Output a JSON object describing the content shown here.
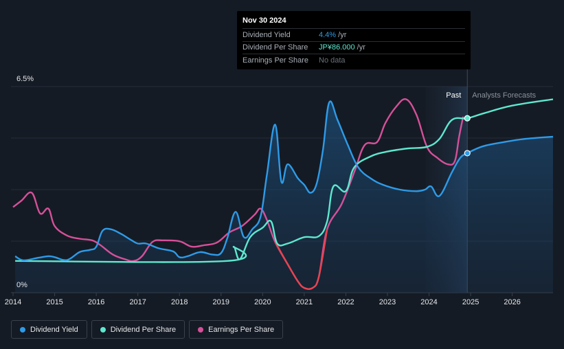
{
  "tooltip": {
    "date": "Nov 30 2024",
    "rows": [
      {
        "label": "Dividend Yield",
        "value": "4.4%",
        "suffix": " /yr"
      },
      {
        "label": "Dividend Per Share",
        "value": "JP¥86.000",
        "suffix": " /yr"
      },
      {
        "label": "Earnings Per Share",
        "value": "No data",
        "suffix": ""
      }
    ]
  },
  "legend": [
    {
      "label": "Dividend Yield",
      "color": "#2e9be8"
    },
    {
      "label": "Dividend Per Share",
      "color": "#5ee8cf"
    },
    {
      "label": "Earnings Per Share",
      "color": "#d6509a"
    }
  ],
  "chart_data": {
    "type": "line",
    "region_labels": {
      "past": "Past",
      "forecast": "Analysts Forecasts"
    },
    "y_ticks": [
      {
        "value": 6.5,
        "label": "6.5%"
      },
      {
        "value": 0,
        "label": "0%"
      }
    ],
    "x_ticks": [
      "2014",
      "2015",
      "2016",
      "2017",
      "2018",
      "2019",
      "2020",
      "2021",
      "2022",
      "2023",
      "2024",
      "2025",
      "2026"
    ],
    "xlim": [
      2013.95,
      2026.98
    ],
    "ylim": [
      0,
      6.5
    ],
    "forecast_start": 2024.92,
    "shade_start": 2023.92,
    "series": [
      {
        "name": "Dividend Yield",
        "unit": "%",
        "color": "#2e9be8",
        "points": [
          [
            2014.05,
            1.15
          ],
          [
            2014.25,
            1.02
          ],
          [
            2014.6,
            1.1
          ],
          [
            2014.85,
            1.15
          ],
          [
            2015.0,
            1.12
          ],
          [
            2015.3,
            1.03
          ],
          [
            2015.6,
            1.28
          ],
          [
            2015.85,
            1.35
          ],
          [
            2016.0,
            1.45
          ],
          [
            2016.15,
            1.95
          ],
          [
            2016.35,
            2.0
          ],
          [
            2016.6,
            1.85
          ],
          [
            2016.85,
            1.65
          ],
          [
            2017.0,
            1.55
          ],
          [
            2017.2,
            1.55
          ],
          [
            2017.5,
            1.4
          ],
          [
            2017.85,
            1.3
          ],
          [
            2018.0,
            1.12
          ],
          [
            2018.2,
            1.15
          ],
          [
            2018.5,
            1.28
          ],
          [
            2018.8,
            1.2
          ],
          [
            2019.0,
            1.25
          ],
          [
            2019.15,
            1.72
          ],
          [
            2019.35,
            2.55
          ],
          [
            2019.55,
            1.75
          ],
          [
            2019.75,
            2.0
          ],
          [
            2019.95,
            2.4
          ],
          [
            2020.1,
            3.7
          ],
          [
            2020.3,
            5.3
          ],
          [
            2020.45,
            3.5
          ],
          [
            2020.6,
            4.05
          ],
          [
            2020.85,
            3.6
          ],
          [
            2021.0,
            3.4
          ],
          [
            2021.15,
            3.15
          ],
          [
            2021.3,
            3.45
          ],
          [
            2021.45,
            4.5
          ],
          [
            2021.6,
            6.0
          ],
          [
            2021.8,
            5.45
          ],
          [
            2022.05,
            4.65
          ],
          [
            2022.3,
            3.95
          ],
          [
            2022.6,
            3.6
          ],
          [
            2022.9,
            3.4
          ],
          [
            2023.3,
            3.25
          ],
          [
            2023.7,
            3.2
          ],
          [
            2023.9,
            3.25
          ],
          [
            2024.05,
            3.35
          ],
          [
            2024.25,
            3.05
          ],
          [
            2024.55,
            3.8
          ],
          [
            2024.75,
            4.25
          ],
          [
            2024.92,
            4.4
          ],
          [
            2025.3,
            4.62
          ],
          [
            2025.8,
            4.75
          ],
          [
            2026.3,
            4.85
          ],
          [
            2026.98,
            4.92
          ]
        ]
      },
      {
        "name": "Dividend Per Share",
        "unit": "JP¥",
        "color": "#5ee8cf",
        "points": [
          [
            2014.05,
            1.0
          ],
          [
            2019.15,
            1.0
          ],
          [
            2019.3,
            1.45
          ],
          [
            2019.45,
            1.05
          ],
          [
            2019.7,
            1.75
          ],
          [
            2020.0,
            2.05
          ],
          [
            2020.2,
            2.25
          ],
          [
            2020.35,
            1.55
          ],
          [
            2020.6,
            1.55
          ],
          [
            2021.0,
            1.75
          ],
          [
            2021.35,
            1.78
          ],
          [
            2021.55,
            2.25
          ],
          [
            2021.7,
            3.35
          ],
          [
            2022.0,
            3.2
          ],
          [
            2022.2,
            3.95
          ],
          [
            2022.6,
            4.3
          ],
          [
            2023.0,
            4.45
          ],
          [
            2023.5,
            4.55
          ],
          [
            2023.95,
            4.6
          ],
          [
            2024.25,
            4.85
          ],
          [
            2024.55,
            5.45
          ],
          [
            2024.92,
            5.5
          ],
          [
            2025.3,
            5.65
          ],
          [
            2026.0,
            5.9
          ],
          [
            2026.98,
            6.1
          ]
        ]
      },
      {
        "name": "Earnings Per Share",
        "unit": "JP¥",
        "color": "#d6509a",
        "low_color": "#e8434f",
        "points": [
          [
            2014.0,
            2.7
          ],
          [
            2014.2,
            2.9
          ],
          [
            2014.45,
            3.15
          ],
          [
            2014.65,
            2.5
          ],
          [
            2014.85,
            2.65
          ],
          [
            2015.0,
            2.1
          ],
          [
            2015.3,
            1.8
          ],
          [
            2015.6,
            1.7
          ],
          [
            2015.9,
            1.65
          ],
          [
            2016.1,
            1.5
          ],
          [
            2016.4,
            1.2
          ],
          [
            2016.7,
            1.05
          ],
          [
            2016.9,
            1.0
          ],
          [
            2017.1,
            1.15
          ],
          [
            2017.35,
            1.6
          ],
          [
            2017.6,
            1.65
          ],
          [
            2018.0,
            1.62
          ],
          [
            2018.3,
            1.45
          ],
          [
            2018.6,
            1.5
          ],
          [
            2018.9,
            1.58
          ],
          [
            2019.2,
            1.9
          ],
          [
            2019.5,
            2.1
          ],
          [
            2019.8,
            2.45
          ],
          [
            2019.95,
            2.65
          ],
          [
            2020.1,
            2.3
          ],
          [
            2020.3,
            1.6
          ],
          [
            2020.6,
            0.9
          ],
          [
            2020.85,
            0.35
          ],
          [
            2021.0,
            0.15
          ],
          [
            2021.2,
            0.15
          ],
          [
            2021.35,
            0.5
          ],
          [
            2021.55,
            2.0
          ],
          [
            2021.9,
            2.8
          ],
          [
            2022.2,
            3.8
          ],
          [
            2022.45,
            4.65
          ],
          [
            2022.75,
            4.75
          ],
          [
            2022.95,
            5.35
          ],
          [
            2023.2,
            5.85
          ],
          [
            2023.45,
            6.1
          ],
          [
            2023.7,
            5.6
          ],
          [
            2023.95,
            4.6
          ],
          [
            2024.2,
            4.25
          ],
          [
            2024.45,
            4.05
          ],
          [
            2024.62,
            4.15
          ],
          [
            2024.72,
            4.9
          ],
          [
            2024.82,
            5.55
          ]
        ]
      }
    ],
    "markers": [
      {
        "series": "Dividend Per Share",
        "x": 2024.92,
        "y": 5.5
      },
      {
        "series": "Dividend Yield",
        "x": 2024.92,
        "y": 4.4
      }
    ]
  }
}
